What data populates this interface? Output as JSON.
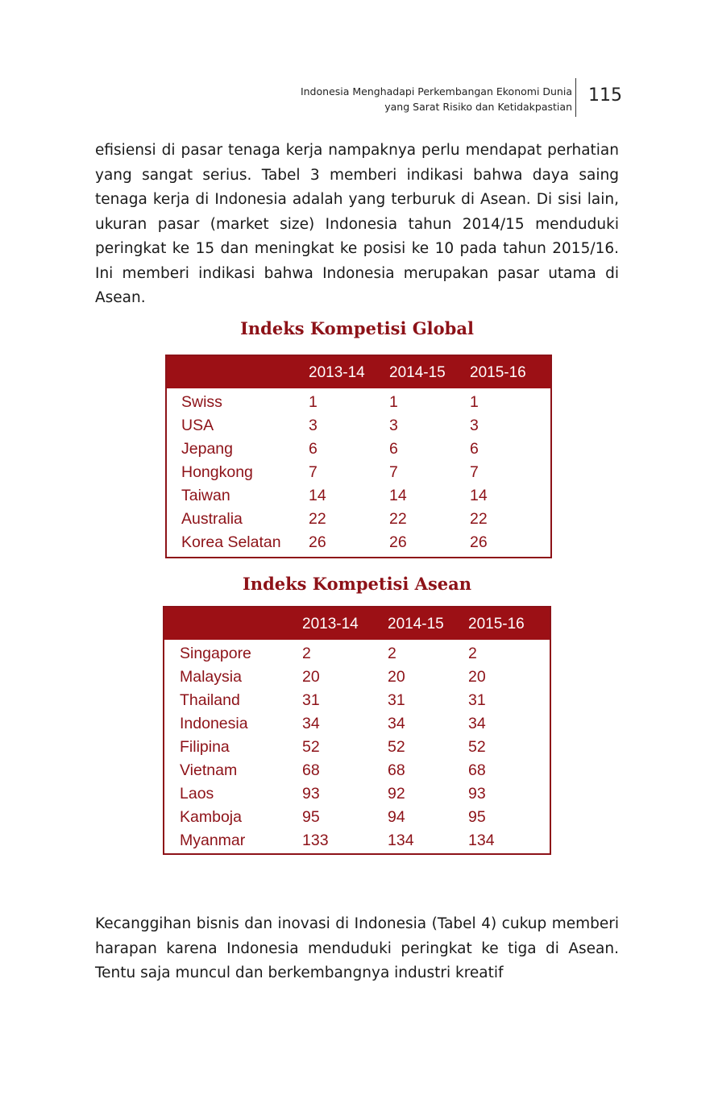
{
  "header": {
    "line1": "Indonesia Menghadapi Perkembangan Ekonomi Dunia",
    "line2": "yang Sarat Risiko dan Ketidakpastian",
    "page_number": "115"
  },
  "paragraph1": "efisiensi di pasar tenaga kerja nampaknya perlu mendapat perhatian yang sangat serius. Tabel 3 memberi indikasi bahwa daya saing tenaga kerja di Indonesia adalah yang terburuk di Asean. Di sisi lain, ukuran pasar (market size) Indonesia tahun 2014/15 menduduki peringkat ke 15 dan meningkat ke posisi ke 10 pada tahun 2015/16. Ini memberi indikasi bahwa Indonesia merupakan pasar utama di Asean.",
  "table_global": {
    "title": "Indeks Kompetisi Global",
    "columns": [
      "",
      "2013-14",
      "2014-15",
      "2015-16"
    ],
    "rows": [
      [
        "Swiss",
        "1",
        "1",
        "1"
      ],
      [
        "USA",
        "3",
        "3",
        "3"
      ],
      [
        "Jepang",
        "6",
        "6",
        "6"
      ],
      [
        "Hongkong",
        "7",
        "7",
        "7"
      ],
      [
        "Taiwan",
        "14",
        "14",
        "14"
      ],
      [
        "Australia",
        "22",
        "22",
        "22"
      ],
      [
        "Korea Selatan",
        "26",
        "26",
        "26"
      ]
    ]
  },
  "table_asean": {
    "title": "Indeks Kompetisi Asean",
    "columns": [
      "",
      "2013-14",
      "2014-15",
      "2015-16"
    ],
    "rows": [
      [
        "Singapore",
        "2",
        "2",
        "2"
      ],
      [
        "Malaysia",
        "20",
        "20",
        "20"
      ],
      [
        "Thailand",
        "31",
        "31",
        "31"
      ],
      [
        "Indonesia",
        "34",
        "34",
        "34"
      ],
      [
        "Filipina",
        "52",
        "52",
        "52"
      ],
      [
        "Vietnam",
        "68",
        "68",
        "68"
      ],
      [
        "Laos",
        "93",
        "92",
        "93"
      ],
      [
        "Kamboja",
        "95",
        "94",
        "95"
      ],
      [
        "Myanmar",
        "133",
        "134",
        "134"
      ]
    ]
  },
  "paragraph2": "Kecanggihan bisnis dan inovasi di Indonesia (Tabel 4) cukup memberi harapan karena Indonesia menduduki peringkat ke tiga di Asean. Tentu saja muncul dan berkembangnya industri kreatif",
  "colors": {
    "accent": "#9c1015",
    "text": "#8d1218"
  }
}
